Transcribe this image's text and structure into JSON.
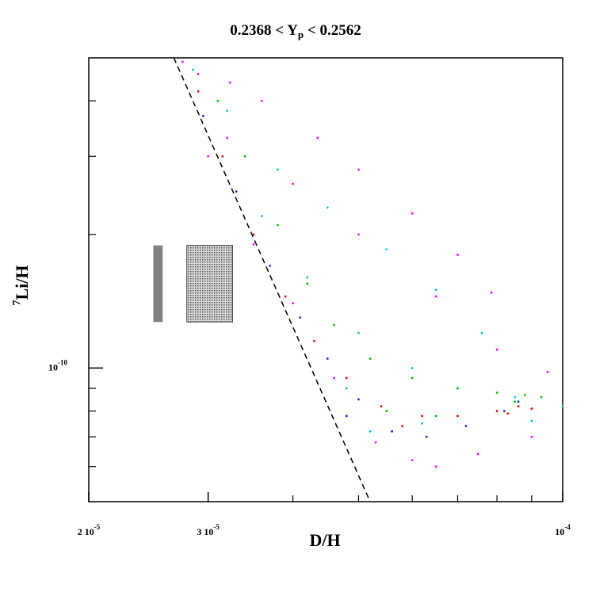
{
  "chart_data": {
    "type": "scatter",
    "title_parts": [
      "0.2368 < Y",
      "p",
      " < 0.2562"
    ],
    "xlabel": "D/H",
    "ylabel_parts": [
      "7",
      "Li/H"
    ],
    "log_x": true,
    "log_y": true,
    "xlim": [
      2e-05,
      0.0001
    ],
    "ylim": [
      5e-11,
      5e-10
    ],
    "xticks": [
      {
        "value": 2e-05,
        "label": "2 10",
        "exp": "-5"
      },
      {
        "value": 3e-05,
        "label": "3 10",
        "exp": "-5"
      },
      {
        "value": 0.0001,
        "label": "10",
        "exp": "-4"
      }
    ],
    "xminor_ticks": [
      4e-05,
      5e-05,
      6e-05,
      7e-05,
      8e-05,
      9e-05
    ],
    "yticks": [
      {
        "value": 1e-10,
        "label": "10",
        "exp": "-10"
      }
    ],
    "yminor_ticks": [
      6e-11,
      7e-11,
      8e-11,
      9e-11,
      2e-10,
      3e-10,
      4e-10
    ],
    "reference_line": {
      "x": [
        2.67e-05,
        5.2e-05
      ],
      "y": [
        5e-10,
        5e-11
      ],
      "color": "#000000",
      "dashed": true
    },
    "boxes": [
      {
        "x": [
          2.49e-05,
          2.57e-05
        ],
        "y": [
          1.27e-10,
          1.89e-10
        ],
        "color": "#808080"
      },
      {
        "x": [
          2.79e-05,
          3.26e-05
        ],
        "y": [
          1.27e-10,
          1.89e-10
        ],
        "color": "#9a9a9a",
        "pattern": "dotted"
      }
    ],
    "series": [
      {
        "color": "#ff00ff",
        "x": [
          2.75e-05,
          2.9e-05,
          3.23e-05,
          3.6e-05,
          4.35e-05,
          5e-05,
          6e-05,
          7e-05,
          7.85e-05,
          9.5e-05,
          3.2e-05,
          4e-05,
          5e-05,
          6.5e-05,
          8e-05,
          4e-05,
          4.6e-05,
          5.3e-05,
          6e-05,
          6.5e-05,
          7.5e-05,
          9e-05,
          3e-05,
          3.5e-05
        ],
        "y": [
          4.9e-10,
          4.6e-10,
          4.4e-10,
          4e-10,
          3.3e-10,
          2.8e-10,
          2.23e-10,
          1.8e-10,
          1.48e-10,
          9.8e-11,
          3.3e-10,
          2.6e-10,
          2e-10,
          1.45e-10,
          1.1e-10,
          1.4e-10,
          9.5e-11,
          6.8e-11,
          6.2e-11,
          6e-11,
          6.4e-11,
          7e-11,
          3e-10,
          1.9e-10
        ]
      },
      {
        "color": "#00c8c8",
        "x": [
          2.85e-05,
          3.2e-05,
          3.8e-05,
          4.5e-05,
          5.5e-05,
          6.5e-05,
          7.6e-05,
          4.2e-05,
          5e-05,
          6e-05,
          7e-05,
          8.5e-05,
          0.0001,
          9e-05,
          5.2e-05,
          6.2e-05,
          3.6e-05,
          4.8e-05
        ],
        "y": [
          4.7e-10,
          3.8e-10,
          2.8e-10,
          2.3e-10,
          1.85e-10,
          1.5e-10,
          1.2e-10,
          1.6e-10,
          1.2e-10,
          1e-10,
          9e-11,
          8.6e-11,
          8.2e-11,
          7.6e-11,
          7.2e-11,
          7.5e-11,
          2.2e-10,
          9e-11
        ]
      },
      {
        "color": "#00c000",
        "x": [
          3.1e-05,
          3.4e-05,
          3.8e-05,
          4.2e-05,
          4.6e-05,
          5.2e-05,
          6e-05,
          7e-05,
          8e-05,
          8.8e-05,
          9.3e-05,
          8.5e-05,
          5.5e-05,
          6.5e-05
        ],
        "y": [
          4e-10,
          3e-10,
          2.1e-10,
          1.55e-10,
          1.25e-10,
          1.05e-10,
          9.5e-11,
          9e-11,
          8.8e-11,
          8.7e-11,
          8.6e-11,
          8.4e-11,
          8e-11,
          7.8e-11
        ]
      },
      {
        "color": "#2020ff",
        "x": [
          2.95e-05,
          3.3e-05,
          3.7e-05,
          4.1e-05,
          4.5e-05,
          5e-05,
          5.6e-05,
          6.3e-05,
          7.2e-05,
          8.2e-05,
          8.6e-05,
          4.8e-05
        ],
        "y": [
          3.7e-10,
          2.5e-10,
          1.7e-10,
          1.3e-10,
          1.05e-10,
          8.5e-11,
          7.2e-11,
          7e-11,
          7.4e-11,
          8e-11,
          8.4e-11,
          7.8e-11
        ]
      },
      {
        "color": "#ff0000",
        "x": [
          2.9e-05,
          3.15e-05,
          3.5e-05,
          3.9e-05,
          4.3e-05,
          4.8e-05,
          5.4e-05,
          6.2e-05,
          7e-05,
          8e-05,
          8.6e-05,
          9e-05,
          8.3e-05,
          5.8e-05
        ],
        "y": [
          4.2e-10,
          3e-10,
          2e-10,
          1.45e-10,
          1.15e-10,
          9.5e-11,
          8.2e-11,
          7.8e-11,
          7.8e-11,
          8e-11,
          8.2e-11,
          8.1e-11,
          7.9e-11,
          7.4e-11
        ]
      }
    ]
  }
}
